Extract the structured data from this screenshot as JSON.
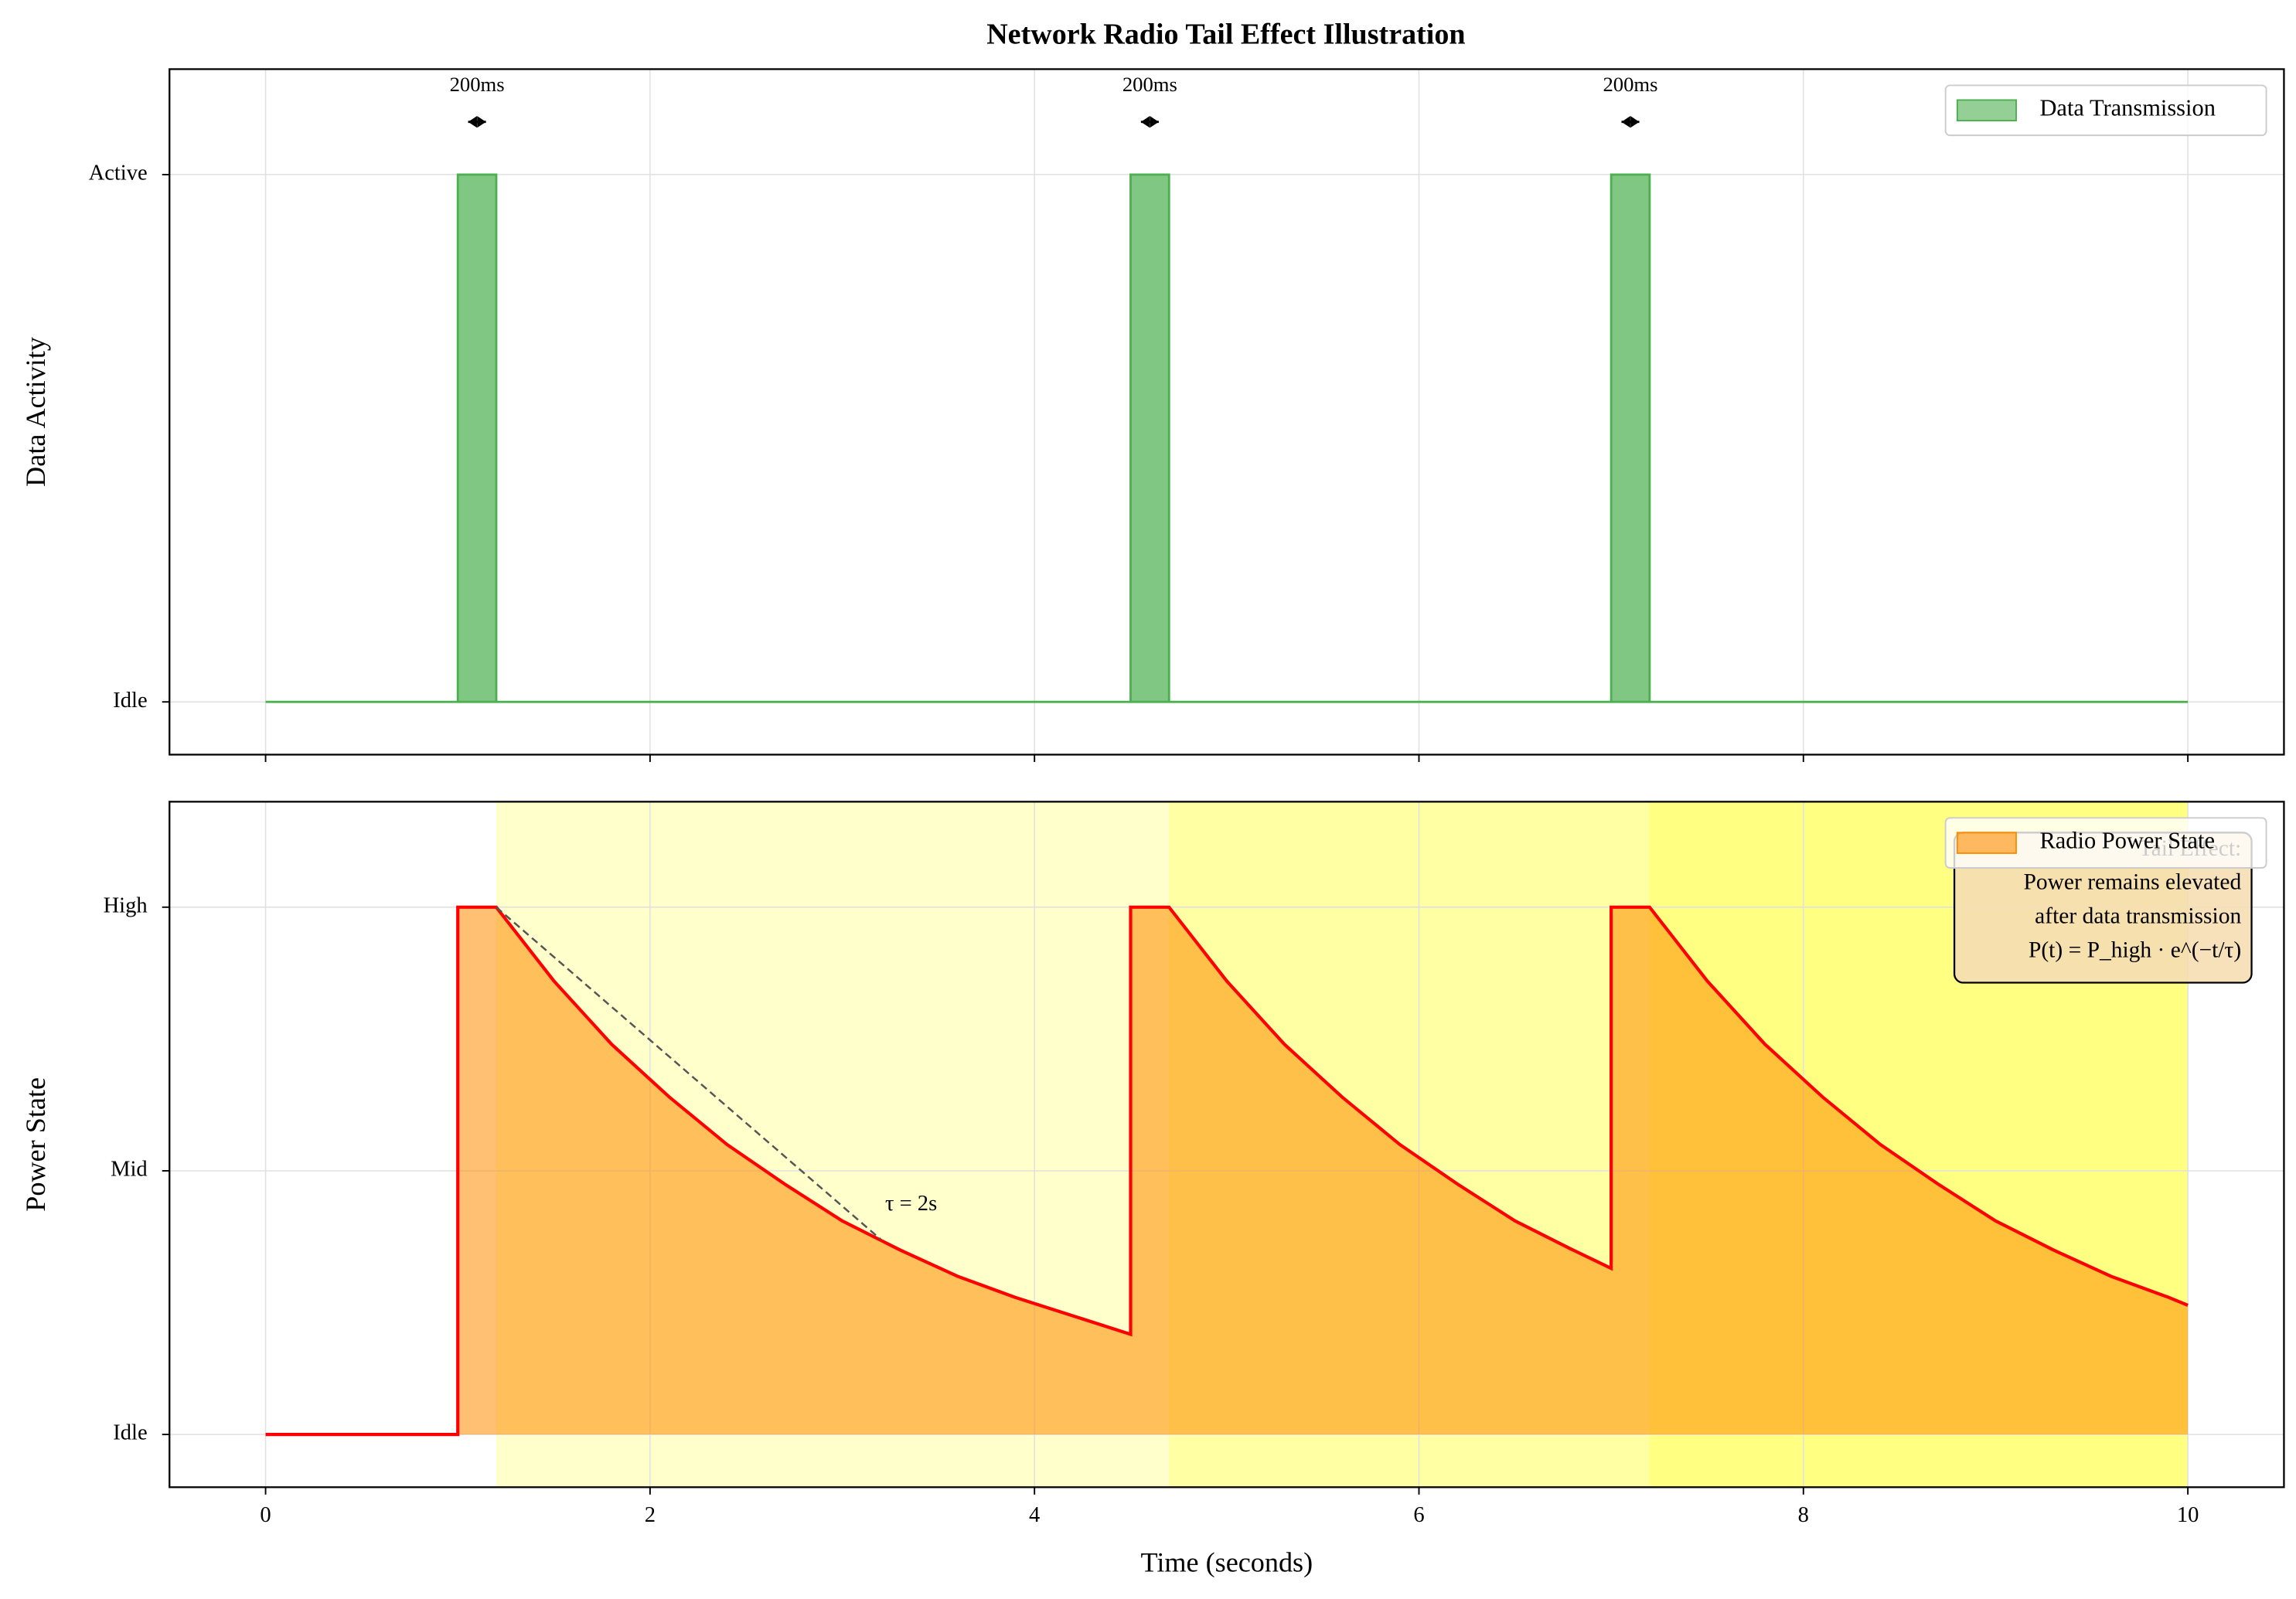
{
  "chart_data": [
    {
      "type": "step-area",
      "title": "Network Radio Tail Effect Illustration",
      "ylabel": "Data Activity",
      "series": [
        {
          "name": "Data Transmission",
          "color": "#4caf50",
          "x": [
            0,
            1,
            1,
            1.2,
            1.2,
            4.5,
            4.5,
            4.7,
            4.7,
            7,
            7,
            7.2,
            7.2,
            10
          ],
          "values": [
            0,
            0,
            1,
            1,
            0,
            0,
            1,
            1,
            0,
            0,
            1,
            1,
            0,
            0
          ]
        }
      ],
      "annotations": [
        {
          "text": "200ms",
          "x": [
            1,
            1.2
          ],
          "y": 1.1
        },
        {
          "text": "200ms",
          "x": [
            4.5,
            4.7
          ],
          "y": 1.1
        },
        {
          "text": "200ms",
          "x": [
            7,
            7.2
          ],
          "y": 1.1
        }
      ],
      "xlim": [
        -0.5,
        10.5
      ],
      "xticks": [
        0,
        2,
        4,
        6,
        8,
        10
      ],
      "ylim": [
        -0.1,
        1.2
      ],
      "yticks": [
        {
          "value": 0,
          "label": "Idle"
        },
        {
          "value": 1,
          "label": "Active"
        }
      ],
      "grid": true,
      "legend": "upper right"
    },
    {
      "type": "area-line",
      "ylabel": "Power State",
      "xlabel": "Time (seconds)",
      "series": [
        {
          "name": "Radio Power State",
          "color": "#ff8c00",
          "line_color": "#ff0000",
          "x": [
            0,
            1,
            1,
            1.2,
            1.5,
            1.8,
            2.1,
            2.4,
            2.7,
            3.0,
            3.3,
            3.6,
            3.9,
            4.2,
            4.5,
            4.5,
            4.7,
            5.0,
            5.3,
            5.6,
            5.9,
            6.2,
            6.5,
            6.8,
            7.0,
            7.0,
            7.2,
            7.5,
            7.8,
            8.1,
            8.4,
            8.7,
            9.0,
            9.3,
            9.6,
            9.9,
            10
          ],
          "values": [
            0,
            0,
            2,
            2,
            1.72,
            1.48,
            1.28,
            1.1,
            0.95,
            0.81,
            0.7,
            0.6,
            0.52,
            0.45,
            0.38,
            2,
            2,
            1.72,
            1.48,
            1.28,
            1.1,
            0.95,
            0.81,
            0.7,
            0.63,
            2,
            2,
            1.72,
            1.48,
            1.28,
            1.1,
            0.95,
            0.81,
            0.7,
            0.6,
            0.52,
            0.49
          ]
        }
      ],
      "tail_spans": [
        [
          1.2,
          10
        ],
        [
          4.7,
          10
        ],
        [
          7.2,
          10
        ]
      ],
      "span_color": "#ffff00",
      "tangent": {
        "x": [
          1.2,
          3.2
        ],
        "y": [
          2,
          0.74
        ]
      },
      "tau_label": {
        "text": "τ = 2s",
        "x": 3.2,
        "y": 0.87
      },
      "textbox": [
        "Tail Effect:",
        "Power remains elevated",
        "after data transmission",
        "P(t) = P_high · e^(−t/τ)"
      ],
      "xlim": [
        -0.5,
        10.5
      ],
      "xticks": [
        0,
        2,
        4,
        6,
        8,
        10
      ],
      "ylim": [
        -0.2,
        2.4
      ],
      "yticks": [
        {
          "value": 0,
          "label": "Idle"
        },
        {
          "value": 1,
          "label": "Mid"
        },
        {
          "value": 2,
          "label": "High"
        }
      ],
      "grid": true,
      "legend": "upper right"
    }
  ]
}
